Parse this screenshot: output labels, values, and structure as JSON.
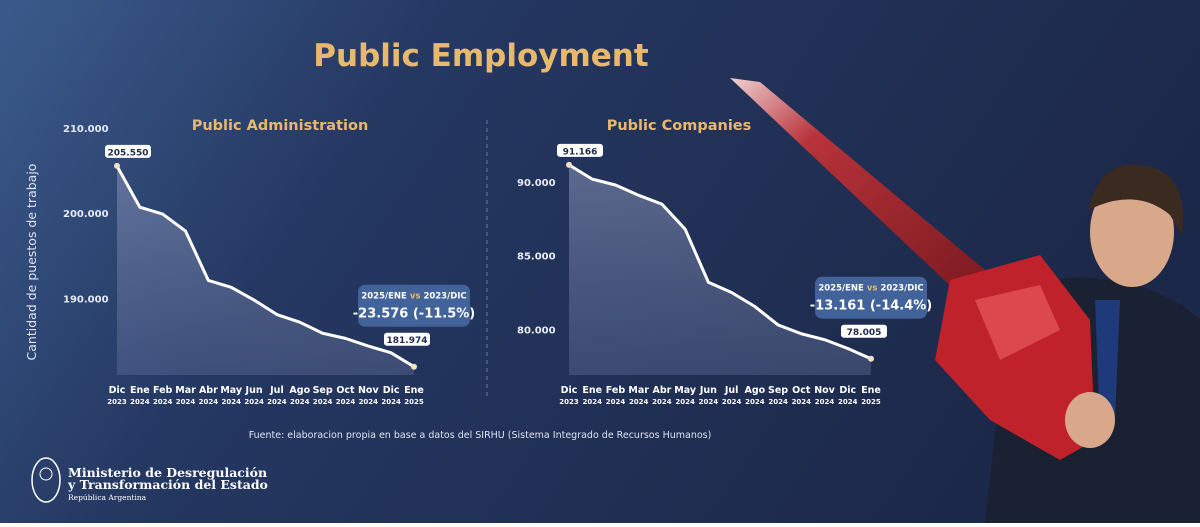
{
  "title": "Public Employment",
  "y_axis_label": "Cantidad de puestos de trabajo",
  "source": "Fuente: elaboracion propia en base a datos del SIRHU (Sistema Integrado de Recursos Humanos)",
  "footer": {
    "line1": "Ministerio de Desregulación",
    "line2": "y Transformación del Estado",
    "line3": "República Argentina"
  },
  "chart_data": [
    {
      "type": "line",
      "title": "Public Administration",
      "categories": [
        "Dic",
        "Ene",
        "Feb",
        "Mar",
        "Abr",
        "May",
        "Jun",
        "Jul",
        "Ago",
        "Sep",
        "Oct",
        "Nov",
        "Dic",
        "Ene"
      ],
      "category_years": [
        "2023",
        "2024",
        "2024",
        "2024",
        "2024",
        "2024",
        "2024",
        "2024",
        "2024",
        "2024",
        "2024",
        "2024",
        "2024",
        "2025"
      ],
      "values": [
        205550,
        200700,
        199900,
        197900,
        192100,
        191300,
        189800,
        188100,
        187200,
        185900,
        185300,
        184400,
        183600,
        181974
      ],
      "value_labels": [
        "205.550",
        null,
        null,
        null,
        null,
        null,
        null,
        null,
        null,
        null,
        null,
        null,
        null,
        "181.974"
      ],
      "color": "#ffffff",
      "ylim": [
        181000,
        211000
      ],
      "yticks": [
        {
          "value": 190000,
          "label": "190.000"
        },
        {
          "value": 200000,
          "label": "200.000"
        },
        {
          "value": 210000,
          "label": "210.000"
        }
      ],
      "annotation": {
        "from": "2025/ENE",
        "vs": "vs",
        "to": "2023/DIC",
        "change": "-23.576 (-11.5%)"
      }
    },
    {
      "type": "line",
      "title": "Public Companies",
      "categories": [
        "Dic",
        "Ene",
        "Feb",
        "Mar",
        "Abr",
        "May",
        "Jun",
        "Jul",
        "Ago",
        "Sep",
        "Oct",
        "Nov",
        "Dic",
        "Ene"
      ],
      "category_years": [
        "2023",
        "2024",
        "2024",
        "2024",
        "2024",
        "2024",
        "2024",
        "2024",
        "2024",
        "2024",
        "2024",
        "2024",
        "2024",
        "2025"
      ],
      "values": [
        91166,
        90200,
        89800,
        89100,
        88500,
        86800,
        83200,
        82500,
        81550,
        80300,
        79700,
        79300,
        78700,
        78005
      ],
      "value_labels": [
        "91.166",
        null,
        null,
        null,
        null,
        null,
        null,
        null,
        null,
        null,
        null,
        null,
        null,
        "78.005"
      ],
      "color": "#ffffff",
      "ylim": [
        76900,
        92000
      ],
      "yticks": [
        {
          "value": 80000,
          "label": "80.000"
        },
        {
          "value": 85000,
          "label": "85.000"
        },
        {
          "value": 90000,
          "label": "90.000"
        }
      ],
      "annotation": {
        "from": "2025/ENE",
        "vs": "vs",
        "to": "2023/DIC",
        "change": "-13.161 (-14.4%)"
      }
    }
  ]
}
